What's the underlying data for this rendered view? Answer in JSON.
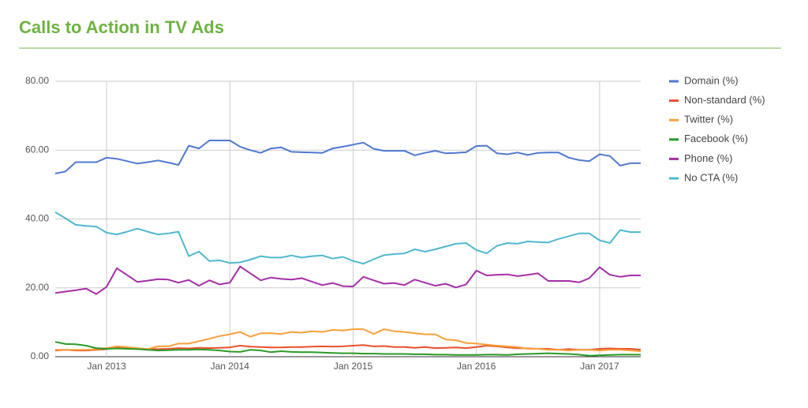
{
  "chart_data": {
    "type": "line",
    "title": "Calls to Action in TV Ads",
    "x": [
      "2012-08",
      "2012-09",
      "2012-10",
      "2012-11",
      "2012-12",
      "2013-01",
      "2013-02",
      "2013-03",
      "2013-04",
      "2013-05",
      "2013-06",
      "2013-07",
      "2013-08",
      "2013-09",
      "2013-10",
      "2013-11",
      "2013-12",
      "2014-01",
      "2014-02",
      "2014-03",
      "2014-04",
      "2014-05",
      "2014-06",
      "2014-07",
      "2014-08",
      "2014-09",
      "2014-10",
      "2014-11",
      "2014-12",
      "2015-01",
      "2015-02",
      "2015-03",
      "2015-04",
      "2015-05",
      "2015-06",
      "2015-07",
      "2015-08",
      "2015-09",
      "2015-10",
      "2015-11",
      "2015-12",
      "2016-01",
      "2016-02",
      "2016-03",
      "2016-04",
      "2016-05",
      "2016-06",
      "2016-07",
      "2016-08",
      "2016-09",
      "2016-10",
      "2016-11",
      "2016-12",
      "2017-01",
      "2017-02",
      "2017-03",
      "2017-04",
      "2017-05"
    ],
    "series": [
      {
        "name": "Domain (%)",
        "color": "#4f79d0",
        "values": [
          53.2,
          53.8,
          56.5,
          56.5,
          56.5,
          57.8,
          57.5,
          56.8,
          56.1,
          56.5,
          57,
          56.4,
          55.7,
          61.3,
          60.5,
          62.8,
          62.8,
          62.8,
          61,
          60,
          59.2,
          60.5,
          60.8,
          59.5,
          59.4,
          59.3,
          59.2,
          60.5,
          61,
          61.6,
          62.2,
          60.4,
          59.8,
          59.8,
          59.8,
          58.5,
          59.2,
          59.8,
          59.1,
          59.2,
          59.4,
          61.2,
          61.3,
          59.1,
          58.8,
          59.3,
          58.6,
          59.2,
          59.3,
          59.3,
          57.8,
          57.1,
          56.8,
          58.8,
          58.3,
          55.5,
          56.2,
          56.2
        ]
      },
      {
        "name": "Non-standard (%)",
        "color": "#e8502a",
        "values": [
          1.8,
          2,
          1.8,
          1.8,
          2,
          2.2,
          2.8,
          2.6,
          2.4,
          2.2,
          2.2,
          2.3,
          2.5,
          2.4,
          2.6,
          2.5,
          2.6,
          2.7,
          3.2,
          2.9,
          2.8,
          2.7,
          2.7,
          2.8,
          2.8,
          2.9,
          3,
          2.9,
          3,
          3.2,
          3.4,
          3,
          3.1,
          2.8,
          2.8,
          2.6,
          2.8,
          2.5,
          2.6,
          2.7,
          2.5,
          2.8,
          3.2,
          3,
          2.7,
          2.5,
          2.4,
          2.3,
          2.3,
          2,
          2.2,
          2,
          2,
          2.3,
          2.4,
          2.3,
          2.3,
          2
        ]
      },
      {
        "name": "Twitter (%)",
        "color": "#f8a03a",
        "values": [
          2,
          2,
          2,
          2,
          2.2,
          2.5,
          3,
          2.8,
          2.5,
          2.2,
          3,
          3,
          3.8,
          3.8,
          4.5,
          5.2,
          6,
          6.5,
          7.2,
          5.8,
          6.8,
          6.8,
          6.6,
          7.2,
          7,
          7.4,
          7.2,
          7.8,
          7.6,
          8,
          8,
          6.6,
          8,
          7.4,
          7.2,
          6.8,
          6.5,
          6.5,
          5,
          4.8,
          4,
          3.8,
          3.5,
          3.2,
          3,
          2.8,
          2.3,
          2.3,
          2,
          2,
          1.8,
          2,
          2,
          1.8,
          2,
          2,
          1.8,
          1.6
        ]
      },
      {
        "name": "Facebook (%)",
        "color": "#2a9a2a",
        "values": [
          4.3,
          3.7,
          3.6,
          3.2,
          2.5,
          2.3,
          2.4,
          2.3,
          2.2,
          2,
          1.8,
          1.9,
          2,
          2,
          2.1,
          2,
          1.8,
          1.5,
          1.4,
          2,
          1.8,
          1.3,
          1.6,
          1.4,
          1.3,
          1.3,
          1.2,
          1.1,
          1,
          1,
          0.9,
          0.9,
          0.8,
          0.8,
          0.8,
          0.7,
          0.7,
          0.6,
          0.6,
          0.5,
          0.5,
          0.5,
          0.6,
          0.6,
          0.5,
          0.7,
          0.8,
          0.9,
          1,
          0.9,
          0.8,
          0.6,
          0.3,
          0.4,
          0.5,
          0.6,
          0.6,
          0.6
        ]
      },
      {
        "name": "Phone (%)",
        "color": "#a52ea8",
        "values": [
          18.5,
          18.9,
          19.3,
          19.8,
          18.2,
          20.3,
          25.7,
          23.7,
          21.7,
          22.1,
          22.5,
          22.4,
          21.5,
          22.3,
          20.6,
          22.2,
          21,
          21.5,
          26.2,
          24.2,
          22.2,
          23,
          22.6,
          22.4,
          22.8,
          21.8,
          20.8,
          21.4,
          20.5,
          20.4,
          23.2,
          22.2,
          21.2,
          21.4,
          20.8,
          22.4,
          21.5,
          20.6,
          21.2,
          20.1,
          21,
          25,
          23.6,
          23.8,
          23.9,
          23.4,
          23.8,
          24.2,
          22,
          22,
          22,
          21.6,
          22.8,
          26,
          23.8,
          23.2,
          23.6,
          23.6
        ]
      },
      {
        "name": "No CTA (%)",
        "color": "#4fb8cf",
        "values": [
          42,
          40.2,
          38.3,
          38,
          37.8,
          36,
          35.5,
          36.3,
          37.2,
          36.3,
          35.5,
          35.8,
          36.3,
          29.2,
          30.5,
          27.8,
          28,
          27.2,
          27.4,
          28.2,
          29.2,
          28.8,
          28.8,
          29.4,
          28.8,
          29.2,
          29.4,
          28.5,
          29,
          27.8,
          27,
          28.3,
          29.5,
          29.8,
          30,
          31.2,
          30.5,
          31.2,
          32,
          32.8,
          33,
          31,
          30,
          32.2,
          33,
          32.8,
          33.5,
          33.3,
          33.2,
          34.2,
          35,
          35.8,
          35.8,
          33.8,
          33,
          36.8,
          36.2,
          36.2
        ]
      }
    ],
    "xlim": [
      "2012-08",
      "2017-05"
    ],
    "xticks": [
      {
        "value": "2013-01",
        "label": "Jan 2013"
      },
      {
        "value": "2014-01",
        "label": "Jan 2014"
      },
      {
        "value": "2015-01",
        "label": "Jan 2015"
      },
      {
        "value": "2016-01",
        "label": "Jan 2016"
      },
      {
        "value": "2017-01",
        "label": "Jan 2017"
      }
    ],
    "ylim": [
      0,
      80
    ],
    "yticks": [
      {
        "value": 0,
        "label": "0.00"
      },
      {
        "value": 20,
        "label": "20.00"
      },
      {
        "value": 40,
        "label": "40.00"
      },
      {
        "value": 60,
        "label": "60.00"
      },
      {
        "value": 80,
        "label": "80.00"
      }
    ],
    "grid": true,
    "legend": "right"
  }
}
